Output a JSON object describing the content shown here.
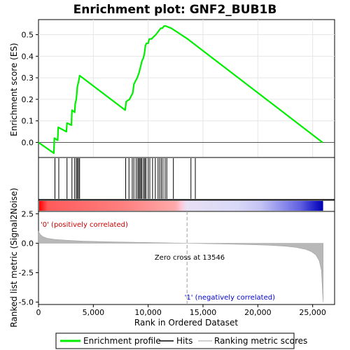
{
  "chart_data": {
    "type": "line",
    "title": "Enrichment plot: GNF2_BUB1B",
    "xlabel": "Rank in Ordered Dataset",
    "es_panel": {
      "ylabel": "Enrichment score (ES)",
      "ylim": [
        -0.07,
        0.57
      ],
      "yticks": [
        0.0,
        0.1,
        0.2,
        0.3,
        0.4,
        0.5
      ],
      "ytick_labels": [
        "0.0",
        "0.1",
        "0.2",
        "0.3",
        "0.4",
        "0.5"
      ],
      "grid": true,
      "series": [
        {
          "name": "Enrichment profile",
          "color": "#00ee00",
          "points": [
            [
              0,
              0.0
            ],
            [
              1400,
              -0.05
            ],
            [
              1450,
              0.02
            ],
            [
              1750,
              0.01
            ],
            [
              1800,
              0.07
            ],
            [
              2550,
              0.05
            ],
            [
              2600,
              0.09
            ],
            [
              3000,
              0.08
            ],
            [
              3050,
              0.15
            ],
            [
              3300,
              0.14
            ],
            [
              3350,
              0.18
            ],
            [
              3450,
              0.2
            ],
            [
              3550,
              0.26
            ],
            [
              3650,
              0.28
            ],
            [
              3750,
              0.31
            ],
            [
              7900,
              0.15
            ],
            [
              8000,
              0.19
            ],
            [
              8300,
              0.2
            ],
            [
              8400,
              0.21
            ],
            [
              8600,
              0.23
            ],
            [
              8700,
              0.27
            ],
            [
              8900,
              0.29
            ],
            [
              9000,
              0.3
            ],
            [
              9150,
              0.32
            ],
            [
              9250,
              0.34
            ],
            [
              9350,
              0.36
            ],
            [
              9450,
              0.38
            ],
            [
              9550,
              0.39
            ],
            [
              9650,
              0.41
            ],
            [
              9750,
              0.45
            ],
            [
              9850,
              0.46
            ],
            [
              10000,
              0.46
            ],
            [
              10100,
              0.48
            ],
            [
              10300,
              0.48
            ],
            [
              10500,
              0.49
            ],
            [
              10700,
              0.5
            ],
            [
              10850,
              0.51
            ],
            [
              11000,
              0.52
            ],
            [
              11150,
              0.53
            ],
            [
              11300,
              0.53
            ],
            [
              11450,
              0.54
            ],
            [
              11600,
              0.54
            ],
            [
              12100,
              0.53
            ],
            [
              13600,
              0.48
            ],
            [
              25900,
              0.0
            ]
          ]
        }
      ]
    },
    "hits_panel": {
      "legend_label": "Hits",
      "positions": [
        1500,
        1850,
        2600,
        3050,
        3300,
        3450,
        3550,
        3650,
        3750,
        7950,
        8250,
        8550,
        8700,
        8900,
        9050,
        9150,
        9250,
        9350,
        9450,
        9600,
        9700,
        9800,
        10000,
        10150,
        10400,
        10650,
        10900,
        11050,
        11200,
        11350,
        11550,
        11700,
        12300,
        13900,
        14300
      ]
    },
    "rank_panel": {
      "ylabel": "Ranked list metric (Signal2Noise)",
      "ylim": [
        -5.2,
        2.7
      ],
      "yticks": [
        2.5,
        0.0,
        -2.5,
        -5.0
      ],
      "ytick_labels": [
        "2.5",
        "0.0",
        "-2.5",
        "-5.0"
      ],
      "legend_label": "Ranking metric scores",
      "zero_cross_text": "Zero cross at 13546",
      "zero_cross": 13546,
      "positive_label": "'0' (positively correlated)",
      "negative_label": "'1' (negatively correlated)",
      "metric_profile": [
        [
          0,
          1.0
        ],
        [
          150,
          0.75
        ],
        [
          400,
          0.55
        ],
        [
          800,
          0.42
        ],
        [
          1500,
          0.32
        ],
        [
          2500,
          0.25
        ],
        [
          4000,
          0.18
        ],
        [
          6000,
          0.13
        ],
        [
          8000,
          0.09
        ],
        [
          10000,
          0.06
        ],
        [
          12000,
          0.03
        ],
        [
          13546,
          0.0
        ],
        [
          15000,
          -0.03
        ],
        [
          17000,
          -0.07
        ],
        [
          19000,
          -0.11
        ],
        [
          21000,
          -0.17
        ],
        [
          22500,
          -0.25
        ],
        [
          23500,
          -0.36
        ],
        [
          24300,
          -0.5
        ],
        [
          24900,
          -0.72
        ],
        [
          25300,
          -1.0
        ],
        [
          25600,
          -1.5
        ],
        [
          25800,
          -2.3
        ],
        [
          25950,
          -5.0
        ]
      ]
    },
    "x": {
      "xlim": [
        0,
        27000
      ],
      "xticks": [
        0,
        5000,
        10000,
        15000,
        20000,
        25000
      ],
      "xtick_labels": [
        "0",
        "5,000",
        "10,000",
        "15,000",
        "20,000",
        "25,000"
      ]
    },
    "legend": {
      "entries": [
        "Enrichment profile",
        "Hits",
        "Ranking metric scores"
      ],
      "placement": "bottom"
    }
  }
}
